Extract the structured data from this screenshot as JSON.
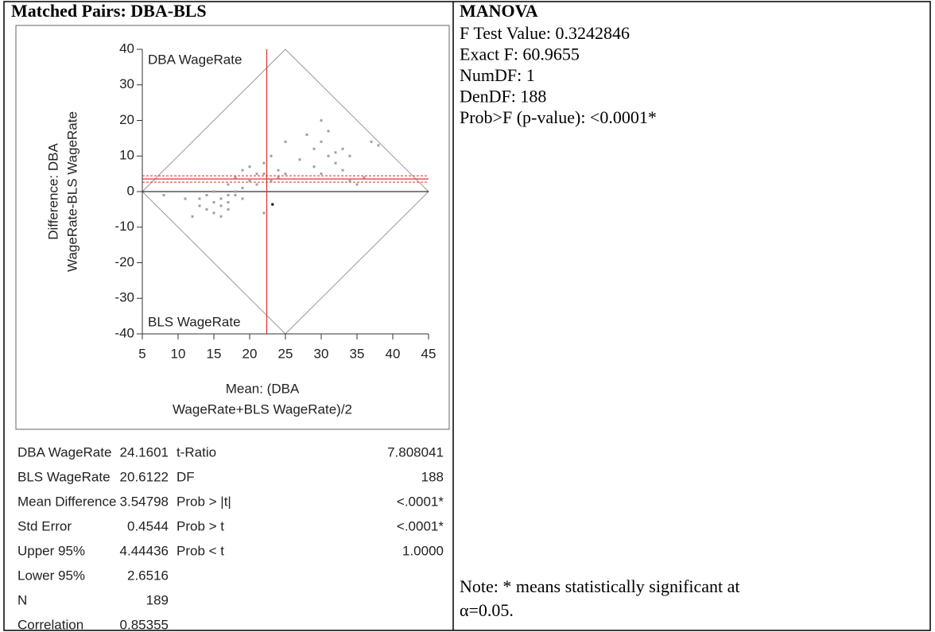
{
  "title": "Matched Pairs: DBA-BLS",
  "chart_data": {
    "type": "scatter",
    "xlabel": [
      "Mean: (DBA",
      "WageRate+BLS WageRate)/2"
    ],
    "ylabel": [
      "Difference: DBA",
      "WageRate-BLS WageRate"
    ],
    "annotations": [
      "DBA WageRate",
      "BLS WageRate"
    ],
    "xlim": [
      5,
      45
    ],
    "xticks": [
      5,
      10,
      15,
      20,
      25,
      30,
      35,
      40,
      45
    ],
    "ylim": [
      -40,
      40
    ],
    "yticks": [
      -40,
      -30,
      -20,
      -10,
      0,
      10,
      20,
      30,
      40
    ],
    "series": [
      {
        "color": "#a0a0a0",
        "x": [
          8,
          11,
          12,
          13,
          13,
          14,
          14,
          15,
          15,
          15,
          16,
          16,
          16,
          17,
          17,
          17,
          18,
          18,
          19,
          19,
          17,
          18,
          19,
          20,
          20,
          21,
          21,
          22,
          22,
          22,
          23,
          23,
          24,
          24,
          25,
          25,
          29,
          29,
          30,
          30,
          31,
          31,
          32,
          32,
          33,
          33,
          34,
          34,
          35,
          36,
          37,
          38,
          30,
          28,
          27
        ],
        "values": [
          -1,
          -2,
          -7,
          -4,
          -2,
          -5,
          -1,
          -3,
          -6,
          0,
          -2,
          -4,
          -7,
          -1,
          -3,
          -5,
          -1,
          0,
          1,
          -2,
          2,
          4,
          6,
          7,
          3,
          5,
          2,
          8,
          5,
          -6,
          3,
          10,
          4,
          6,
          5,
          14,
          7,
          12,
          14,
          20,
          10,
          17,
          11,
          8,
          12,
          6,
          10,
          3,
          2,
          4,
          14,
          13,
          5,
          16,
          9
        ]
      },
      {
        "color": "#000000",
        "x": [
          23.2
        ],
        "values": [
          -3.6
        ]
      }
    ],
    "mean_x": 22.39,
    "mean_difference": 3.548,
    "ci": [
      2.6516,
      4.44436
    ],
    "reference_color": "#e03030"
  },
  "stats": {
    "rows": [
      [
        "DBA WageRate",
        "24.1601",
        "t-Ratio",
        "7.808041"
      ],
      [
        "BLS WageRate",
        "20.6122",
        "DF",
        "188"
      ],
      [
        "Mean Difference",
        "3.54798",
        "Prob > |t|",
        "<.0001*"
      ],
      [
        "Std Error",
        "0.4544",
        "Prob > t",
        "<.0001*"
      ],
      [
        "Upper 95%",
        "4.44436",
        "Prob < t",
        "1.0000"
      ],
      [
        "Lower 95%",
        "2.6516"
      ],
      [
        "N",
        "189"
      ],
      [
        "Correlation",
        "0.85355"
      ]
    ]
  },
  "manova": {
    "title": "MANOVA",
    "lines": [
      "F Test Value: 0.3242846",
      "Exact F: 60.9655",
      "NumDF: 1",
      "DenDF: 188",
      "Prob>F (p-value): <0.0001*"
    ],
    "note": [
      "Note: * means statistically significant at",
      "α=0.05."
    ]
  }
}
